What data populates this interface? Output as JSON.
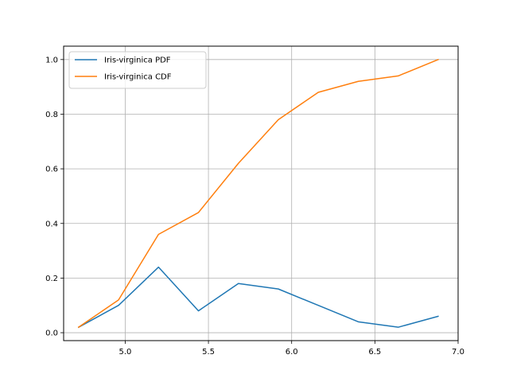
{
  "chart_data": {
    "type": "line",
    "title": "",
    "xlabel": "",
    "ylabel": "",
    "xlim": [
      4.63,
      7.0
    ],
    "ylim": [
      -0.029,
      1.049
    ],
    "x": [
      4.72,
      4.96,
      5.2,
      5.44,
      5.68,
      5.92,
      6.16,
      6.4,
      6.64,
      6.88
    ],
    "series": [
      {
        "name": "Iris-virginica PDF",
        "color": "#1f77b4",
        "values": [
          0.02,
          0.1,
          0.24,
          0.08,
          0.18,
          0.16,
          0.1,
          0.04,
          0.02,
          0.06
        ]
      },
      {
        "name": " Iris-virginica CDF",
        "color": "#ff7f0e",
        "values": [
          0.02,
          0.12,
          0.36,
          0.44,
          0.62,
          0.78,
          0.88,
          0.92,
          0.94,
          1.0
        ]
      }
    ],
    "x_ticks": [
      5.0,
      5.5,
      6.0,
      6.5,
      7.0
    ],
    "x_tick_labels": [
      "5.0",
      "5.5",
      "6.0",
      "6.5",
      "7.0"
    ],
    "y_ticks": [
      0.0,
      0.2,
      0.4,
      0.6,
      0.8,
      1.0
    ],
    "y_tick_labels": [
      "0.0",
      "0.2",
      "0.4",
      "0.6",
      "0.8",
      "1.0"
    ],
    "grid": true,
    "legend_position": "top-left"
  }
}
